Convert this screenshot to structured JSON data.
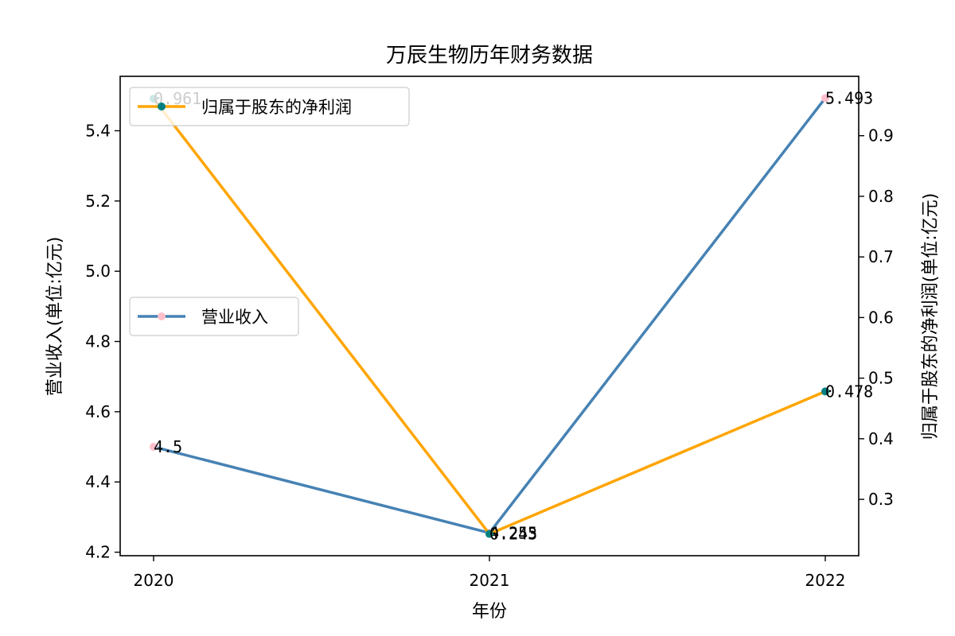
{
  "chart_data": {
    "type": "line",
    "title": "万辰生物历年财务数据",
    "xlabel": "年份",
    "ylabel_left": "营业收入(单位:亿元)",
    "ylabel_right": "归属于股东的净利润(单位:亿元)",
    "categories": [
      "2020",
      "2021",
      "2022"
    ],
    "y_left_ticks": [
      "4.2",
      "4.4",
      "4.6",
      "4.8",
      "5.0",
      "5.2",
      "5.4"
    ],
    "y_right_ticks": [
      "0.3",
      "0.4",
      "0.5",
      "0.6",
      "0.7",
      "0.8",
      "0.9"
    ],
    "ylim_left": [
      4.19,
      5.555
    ],
    "ylim_right": [
      0.207,
      0.998
    ],
    "grid": false,
    "series": [
      {
        "name": "营业收入",
        "axis": "left",
        "values": [
          4.5,
          4.255,
          5.493
        ],
        "labels": [
          "4.5",
          "4.255",
          "5.493"
        ],
        "line_color": "#4682b4",
        "marker_color": "#ffc0cb",
        "legend_position": "center-left"
      },
      {
        "name": "归属于股东的净利润",
        "axis": "right",
        "values": [
          0.961,
          0.243,
          0.478
        ],
        "labels": [
          "0.961",
          "0.243",
          "0.478"
        ],
        "line_color": "#ffa500",
        "marker_color": "#008080",
        "legend_position": "upper-left"
      }
    ]
  }
}
